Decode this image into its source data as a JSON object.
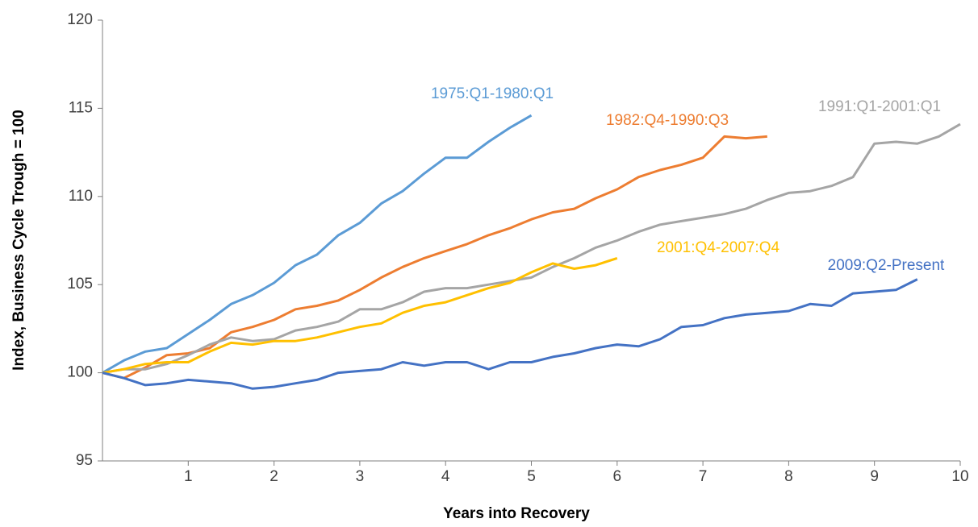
{
  "chart_data": {
    "type": "line",
    "x_label": "Years into Recovery",
    "y_label": "Index, Business Cycle Trough = 100",
    "xlim": [
      0,
      10
    ],
    "xticks": [
      1,
      2,
      3,
      4,
      5,
      6,
      7,
      8,
      9,
      10
    ],
    "ylim": [
      95,
      120
    ],
    "yticks": [
      95,
      100,
      105,
      110,
      115,
      120
    ],
    "grid": false,
    "series": [
      {
        "name": "1975:Q1-1980:Q1",
        "color": "#5b9bd5",
        "x": [
          0,
          0.25,
          0.5,
          0.75,
          1,
          1.25,
          1.5,
          1.75,
          2,
          2.25,
          2.5,
          2.75,
          3,
          3.25,
          3.5,
          3.75,
          4,
          4.25,
          4.5,
          4.75,
          5
        ],
        "values": [
          100,
          100.7,
          101.2,
          101.4,
          102.2,
          103.0,
          103.9,
          104.4,
          105.1,
          106.1,
          106.7,
          107.8,
          108.5,
          109.6,
          110.3,
          111.3,
          112.2,
          112.2,
          113.1,
          113.9,
          114.6
        ]
      },
      {
        "name": "1982:Q4-1990:Q3",
        "color": "#ed7d31",
        "x": [
          0,
          0.25,
          0.5,
          0.75,
          1,
          1.25,
          1.5,
          1.75,
          2,
          2.25,
          2.5,
          2.75,
          3,
          3.25,
          3.5,
          3.75,
          4,
          4.25,
          4.5,
          4.75,
          5,
          5.25,
          5.5,
          5.75,
          6,
          6.25,
          6.5,
          6.75,
          7,
          7.25,
          7.5,
          7.75
        ],
        "values": [
          100,
          99.7,
          100.3,
          101.0,
          101.1,
          101.4,
          102.3,
          102.6,
          103.0,
          103.6,
          103.8,
          104.1,
          104.7,
          105.4,
          106.0,
          106.5,
          106.9,
          107.3,
          107.8,
          108.2,
          108.7,
          109.1,
          109.3,
          109.9,
          110.4,
          111.1,
          111.5,
          111.8,
          112.2,
          113.4,
          113.3,
          113.4
        ]
      },
      {
        "name": "1991:Q1-2001:Q1",
        "color": "#a5a5a5",
        "x": [
          0,
          0.25,
          0.5,
          0.75,
          1,
          1.25,
          1.5,
          1.75,
          2,
          2.25,
          2.5,
          2.75,
          3,
          3.25,
          3.5,
          3.75,
          4,
          4.25,
          4.5,
          4.75,
          5,
          5.25,
          5.5,
          5.75,
          6,
          6.25,
          6.5,
          6.75,
          7,
          7.25,
          7.5,
          7.75,
          8,
          8.25,
          8.5,
          8.75,
          9,
          9.25,
          9.5,
          9.75,
          10
        ],
        "values": [
          100,
          100.2,
          100.2,
          100.5,
          101.0,
          101.6,
          102.0,
          101.8,
          101.9,
          102.4,
          102.6,
          102.9,
          103.6,
          103.6,
          104.0,
          104.6,
          104.8,
          104.8,
          105.0,
          105.2,
          105.4,
          106.0,
          106.5,
          107.1,
          107.5,
          108.0,
          108.4,
          108.6,
          108.8,
          109.0,
          109.3,
          109.8,
          110.2,
          110.3,
          110.6,
          111.1,
          113.0,
          113.1,
          113.0,
          113.4,
          114.1
        ]
      },
      {
        "name": "2001:Q4-2007:Q4",
        "color": "#ffc000",
        "x": [
          0,
          0.25,
          0.5,
          0.75,
          1,
          1.25,
          1.5,
          1.75,
          2,
          2.25,
          2.5,
          2.75,
          3,
          3.25,
          3.5,
          3.75,
          4,
          4.25,
          4.5,
          4.75,
          5,
          5.25,
          5.5,
          5.75,
          6
        ],
        "values": [
          100,
          100.2,
          100.5,
          100.6,
          100.6,
          101.2,
          101.7,
          101.6,
          101.8,
          101.8,
          102.0,
          102.3,
          102.6,
          102.8,
          103.4,
          103.8,
          104.0,
          104.4,
          104.8,
          105.1,
          105.7,
          106.2,
          105.9,
          106.1,
          106.5
        ]
      },
      {
        "name": "2009:Q2-Present",
        "color": "#4472c4",
        "x": [
          0,
          0.25,
          0.5,
          0.75,
          1,
          1.25,
          1.5,
          1.75,
          2,
          2.25,
          2.5,
          2.75,
          3,
          3.25,
          3.5,
          3.75,
          4,
          4.25,
          4.5,
          4.75,
          5,
          5.25,
          5.5,
          5.75,
          6,
          6.25,
          6.5,
          6.75,
          7,
          7.25,
          7.5,
          7.75,
          8,
          8.25,
          8.5,
          8.75,
          9,
          9.25,
          9.5
        ],
        "values": [
          100,
          99.7,
          99.3,
          99.4,
          99.6,
          99.5,
          99.4,
          99.1,
          99.2,
          99.4,
          99.6,
          100.0,
          100.1,
          100.2,
          100.6,
          100.4,
          100.6,
          100.6,
          100.2,
          100.6,
          100.6,
          100.9,
          101.1,
          101.4,
          101.6,
          101.5,
          101.9,
          102.6,
          102.7,
          103.1,
          103.3,
          103.4,
          103.5,
          103.9,
          103.8,
          104.5,
          104.6,
          104.7,
          105.3
        ]
      }
    ]
  }
}
